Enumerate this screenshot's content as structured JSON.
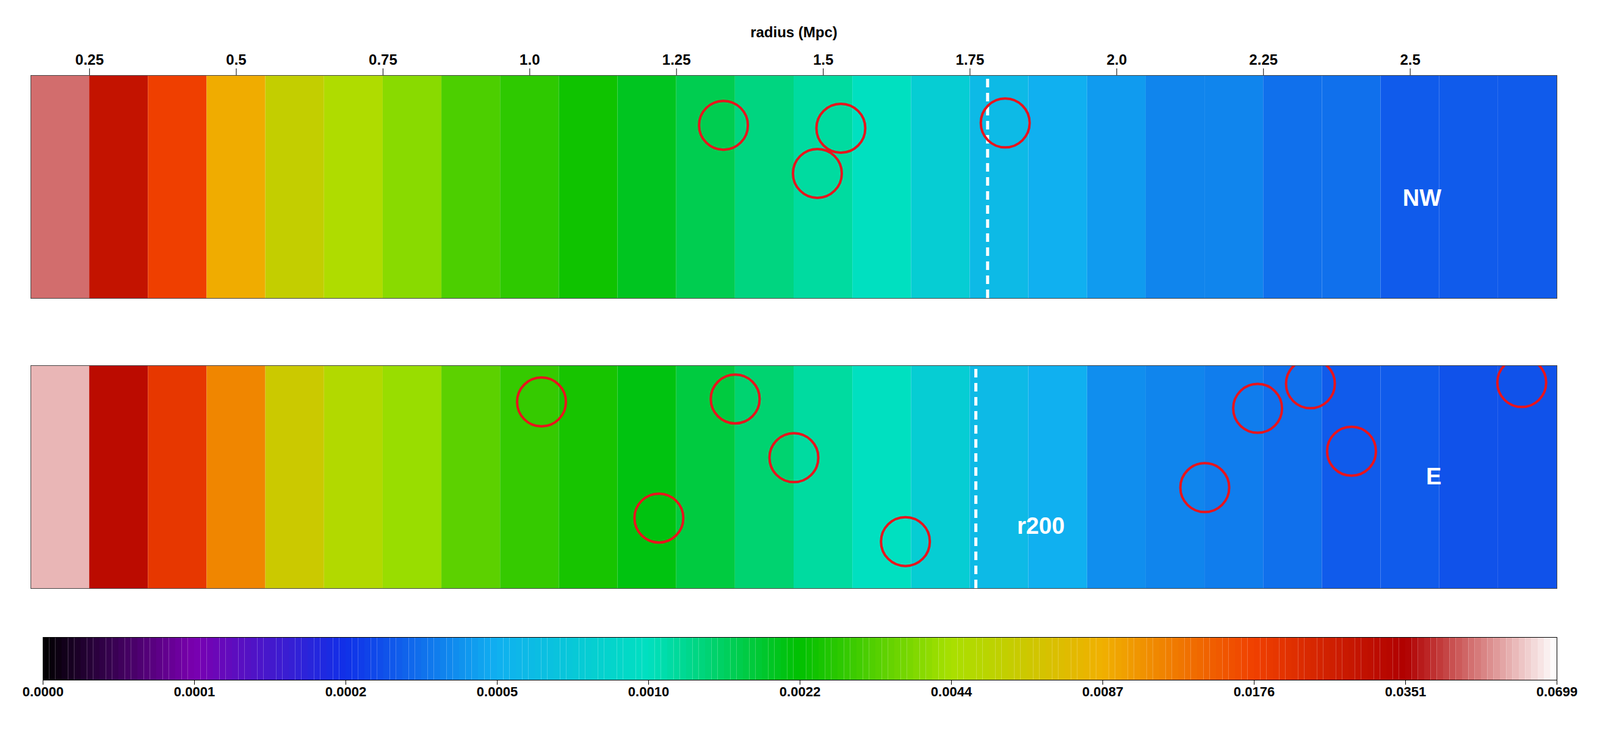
{
  "chart_data": {
    "type": "heatmap",
    "x_label": "radius (Mpc)",
    "xlim": [
      0.15,
      2.75
    ],
    "xticks": [
      0.25,
      0.5,
      0.75,
      {
        "value": 1,
        "label": "1.0"
      },
      1.25,
      1.5,
      1.75,
      {
        "value": 2,
        "label": "2.0"
      },
      2.25,
      2.5
    ],
    "ylim": [
      -0.19,
      0.19
    ],
    "tick_labels": "x",
    "radius_bins": [
      0.15,
      0.25,
      0.35,
      0.45,
      0.55,
      0.65,
      0.75,
      0.85,
      0.95,
      1.05,
      1.15,
      1.25,
      1.35,
      1.45,
      1.55,
      1.65,
      1.75,
      1.85,
      1.95,
      2.05,
      2.15,
      2.25,
      2.35,
      2.45,
      2.55,
      2.65,
      2.75
    ],
    "panels": [
      {
        "name": "NW",
        "label": {
          "text": "NW",
          "x": 2.52,
          "y": -0.02
        },
        "cells": [
          0.05,
          0.03,
          0.018,
          0.009,
          0.006,
          0.0048,
          0.004,
          0.0032,
          0.0028,
          0.0024,
          0.002,
          0.0017,
          0.0014,
          0.0012,
          0.001,
          0.0008,
          0.0006,
          0.0005,
          0.00045,
          0.0004,
          0.0004,
          0.00035,
          0.00035,
          0.0003,
          0.0003,
          0.0003
        ],
        "sources": {
          "x": [
            1.33,
            1.53,
            1.49,
            1.81
          ],
          "y": [
            0.105,
            0.1,
            0.023,
            0.109
          ]
        },
        "r200": 1.78,
        "annotations": []
      },
      {
        "name": "E",
        "label": {
          "text": "E",
          "x": 2.54,
          "y": 0
        },
        "cells": [
          0.06,
          0.032,
          0.02,
          0.012,
          0.0065,
          0.005,
          0.0042,
          0.0034,
          0.0029,
          0.0025,
          0.0021,
          0.0018,
          0.0015,
          0.0012,
          0.001,
          0.0008,
          0.0006,
          0.0005,
          0.00042,
          0.0004,
          0.00038,
          0.00035,
          0.0003,
          0.0003,
          0.00028,
          0.00028
        ],
        "sources": {
          "x": [
            1.02,
            1.35,
            1.45,
            1.22,
            1.64,
            2.24,
            2.33,
            2.15,
            2.4,
            2.69
          ],
          "y": [
            0.128,
            0.133,
            0.033,
            -0.07,
            -0.11,
            0.117,
            0.159,
            -0.018,
            0.044,
            0.161
          ]
        },
        "r200": 1.76,
        "annotations": [
          {
            "text": "r200",
            "x": 1.83,
            "y": -0.084
          }
        ]
      }
    ],
    "colorbar": {
      "ticks": [
        {
          "value": 0,
          "label": "0.0000"
        },
        0.0001,
        0.0002,
        0.0005,
        {
          "value": 0.001,
          "label": "0.0010"
        },
        0.0022,
        0.0044,
        0.0087,
        0.0176,
        0.0351,
        0.0699
      ]
    }
  }
}
